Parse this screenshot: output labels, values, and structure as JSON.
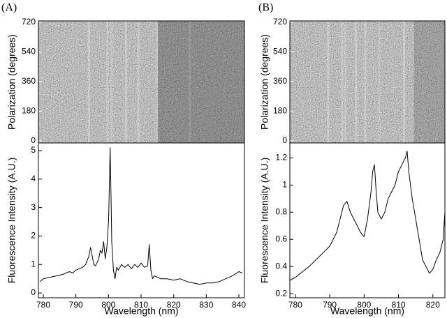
{
  "chart_data": [
    {
      "type": "heatmap",
      "panel_label": "(A)",
      "y_label": "Polarization (degrees)",
      "ylim": [
        -13,
        728
      ],
      "yticks": [
        0,
        180,
        360,
        540,
        720
      ]
    },
    {
      "type": "line",
      "y_label": "Fluorescence Intensity (A.U.)",
      "x_label": "Wavelength (nm)",
      "color": "#000000",
      "x": [
        779,
        780,
        782,
        784,
        786,
        788,
        789,
        790,
        791,
        792,
        793,
        794,
        794.5,
        795,
        795.5,
        796,
        797,
        797.5,
        798,
        798.5,
        799,
        799.5,
        800,
        800.3,
        800.5,
        800.8,
        801,
        801.5,
        802,
        802.5,
        803,
        804,
        805,
        806,
        807,
        808,
        809,
        810,
        811,
        812,
        812.5,
        813,
        813.5,
        814,
        815,
        816,
        818,
        820,
        822,
        824,
        826,
        828,
        830,
        832,
        834,
        836,
        838,
        840,
        841
      ],
      "values": [
        0.4,
        0.5,
        0.55,
        0.6,
        0.65,
        0.75,
        0.7,
        0.8,
        0.85,
        0.9,
        1.0,
        1.3,
        1.6,
        1.3,
        1.0,
        0.95,
        1.2,
        1.5,
        1.4,
        1.8,
        1.2,
        1.6,
        2.5,
        4.0,
        5.1,
        3.2,
        1.8,
        0.8,
        0.5,
        0.9,
        0.8,
        1.0,
        0.9,
        1.0,
        0.85,
        1.0,
        0.9,
        1.05,
        0.9,
        0.95,
        1.7,
        0.8,
        0.5,
        0.6,
        0.55,
        0.5,
        0.5,
        0.45,
        0.5,
        0.4,
        0.35,
        0.3,
        0.35,
        0.35,
        0.4,
        0.5,
        0.6,
        0.75,
        0.7
      ],
      "xlim": [
        778.5,
        841.7
      ],
      "xticks": [
        780,
        790,
        800,
        810,
        820,
        830,
        840
      ],
      "ylim": [
        -0.17,
        5.27
      ],
      "yticks": [
        0,
        1,
        2,
        3,
        4,
        5
      ]
    },
    {
      "type": "heatmap",
      "panel_label": "(B)",
      "y_label": "Polarization (degrees)",
      "ylim": [
        -13,
        728
      ],
      "yticks": [
        0,
        180,
        360,
        540,
        720
      ]
    },
    {
      "type": "line",
      "y_label": "Fluorescence Intensity (A.U.)",
      "x_label": "Wavelength (nm)",
      "color": "#000000",
      "x": [
        778.5,
        780,
        782,
        784,
        786,
        788,
        790,
        792,
        793,
        794,
        795,
        796,
        797,
        798,
        799,
        800,
        801,
        802,
        802.5,
        803,
        803.5,
        804,
        805,
        806,
        807,
        808,
        809,
        810,
        811,
        812,
        812.5,
        813,
        814,
        815,
        816,
        817,
        818,
        819,
        820,
        821,
        822,
        823,
        823.5
      ],
      "values": [
        0.3,
        0.32,
        0.36,
        0.4,
        0.45,
        0.5,
        0.55,
        0.65,
        0.75,
        0.85,
        0.88,
        0.8,
        0.75,
        0.7,
        0.65,
        0.62,
        0.75,
        0.95,
        1.1,
        1.15,
        0.95,
        0.8,
        0.75,
        0.8,
        0.9,
        0.95,
        1.0,
        1.1,
        1.15,
        1.2,
        1.25,
        1.1,
        0.9,
        0.75,
        0.6,
        0.45,
        0.4,
        0.35,
        0.38,
        0.45,
        0.5,
        0.6,
        0.8
      ],
      "xlim": [
        778.4,
        823.5
      ],
      "xticks": [
        780,
        790,
        800,
        810,
        820
      ],
      "ylim": [
        0.17,
        1.31
      ],
      "yticks": [
        0.2,
        0.4,
        0.6,
        0.8,
        1.0,
        1.2
      ]
    }
  ]
}
